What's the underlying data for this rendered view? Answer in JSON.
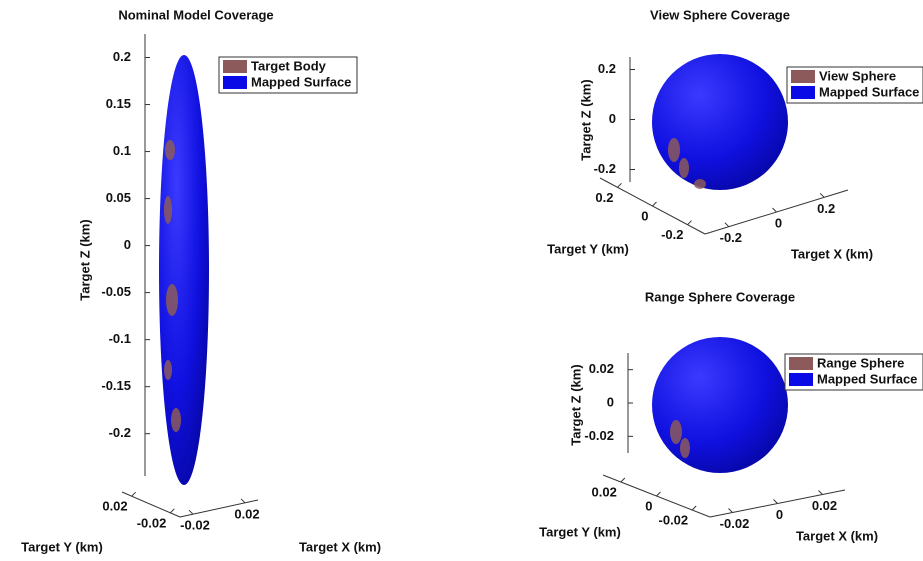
{
  "chart_data": [
    {
      "type": "surface3d",
      "title": "Nominal Model Coverage",
      "xlabel": "Target X (km)",
      "ylabel": "Target Y (km)",
      "zlabel": "Target Z (km)",
      "series": [
        {
          "name": "Target Body",
          "color": "#8c5a5a"
        },
        {
          "name": "Mapped Surface",
          "color": "#0a0ae6"
        }
      ],
      "xlim": [
        -0.03,
        0.03
      ],
      "xticks": [
        -0.02,
        0.02
      ],
      "ylim": [
        -0.03,
        0.03
      ],
      "yticks": [
        0.02,
        -0.02
      ],
      "zlim": [
        -0.245,
        0.225
      ],
      "zticks": [
        0.2,
        0.15,
        0.1,
        0.05,
        0,
        -0.05,
        -0.1,
        -0.15,
        -0.2
      ]
    },
    {
      "type": "surface3d",
      "title": "View Sphere Coverage",
      "xlabel": "Target X (km)",
      "ylabel": "Target Y (km)",
      "zlabel": "Target Z (km)",
      "series": [
        {
          "name": "View Sphere",
          "color": "#8c5a5a"
        },
        {
          "name": "Mapped Surface",
          "color": "#0a0ae6"
        }
      ],
      "xlim": [
        -0.3,
        0.3
      ],
      "xticks": [
        -0.2,
        0,
        0.2
      ],
      "ylim": [
        -0.3,
        0.3
      ],
      "yticks": [
        0.2,
        0,
        -0.2
      ],
      "zlim": [
        -0.25,
        0.25
      ],
      "zticks": [
        0.2,
        0,
        -0.2
      ]
    },
    {
      "type": "surface3d",
      "title": "Range Sphere Coverage",
      "xlabel": "Target X (km)",
      "ylabel": "Target Y (km)",
      "zlabel": "Target Z (km)",
      "series": [
        {
          "name": "Range Sphere",
          "color": "#8c5a5a"
        },
        {
          "name": "Mapped Surface",
          "color": "#0a0ae6"
        }
      ],
      "xlim": [
        -0.03,
        0.03
      ],
      "xticks": [
        -0.02,
        0,
        0.02
      ],
      "ylim": [
        -0.03,
        0.03
      ],
      "yticks": [
        0.02,
        0,
        -0.02
      ],
      "zlim": [
        -0.03,
        0.03
      ],
      "zticks": [
        0.02,
        0,
        -0.02
      ]
    }
  ]
}
